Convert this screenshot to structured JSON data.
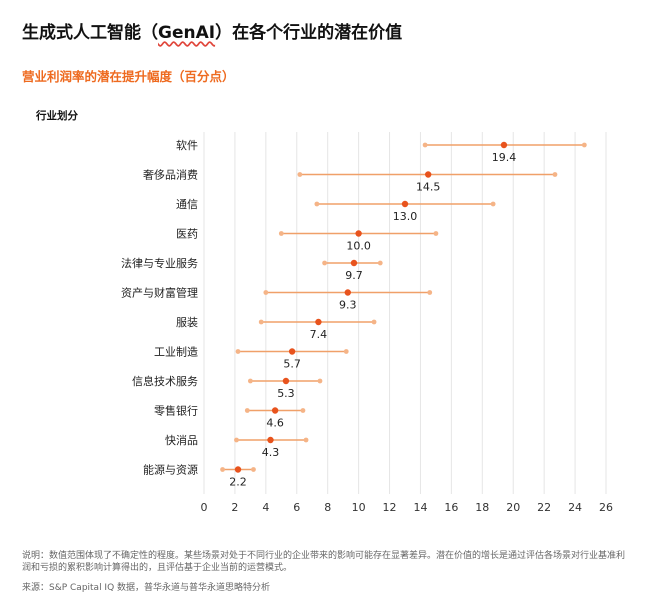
{
  "header": {
    "title_prefix": "生成式人工智能（",
    "title_brand": "GenAI",
    "title_suffix": "）在各个行业的潜在价值",
    "subtitle": "营业利润率的潜在提升幅度（百分点）",
    "axis_header": "行业划分"
  },
  "footer": {
    "note": "说明：数值范围体现了不确定性的程度。某些场景对处于不同行业的企业带来的影响可能存在显著差异。潜在价值的增长是通过评估各场景对行业基准利润和亏损的累积影响计算得出的，且评估基于企业当前的运营模式。",
    "source": "来源：S&P Capital IQ 数据，普华永道与普华永道思略特分析"
  },
  "colors": {
    "point": "#e8531d",
    "range_line": "#f0a069",
    "range_end": "#f5b487",
    "grid": "#e6e6e6",
    "title": "#111111",
    "accent": "#ee6a1f"
  },
  "chart_data": {
    "type": "dot-range",
    "title": "营业利润率的潜在提升幅度（百分点）",
    "ylabel": "行业划分",
    "xlabel": "",
    "xlim": [
      0,
      26
    ],
    "xticks": [
      0,
      2,
      4,
      6,
      8,
      10,
      12,
      14,
      16,
      18,
      20,
      22,
      24,
      26
    ],
    "grid": true,
    "categories": [
      "软件",
      "奢侈品消费",
      "通信",
      "医药",
      "法律与专业服务",
      "资产与财富管理",
      "服装",
      "工业制造",
      "信息技术服务",
      "零售银行",
      "快消品",
      "能源与资源"
    ],
    "values": [
      19.4,
      14.5,
      13.0,
      10.0,
      9.7,
      9.3,
      7.4,
      5.7,
      5.3,
      4.6,
      4.3,
      2.2
    ],
    "value_labels": [
      "19.4",
      "14.5",
      "13.0",
      "10.0",
      "9.7",
      "9.3",
      "7.4",
      "5.7",
      "5.3",
      "4.6",
      "4.3",
      "2.2"
    ],
    "low": [
      14.3,
      6.2,
      7.3,
      5.0,
      7.8,
      4.0,
      3.7,
      2.2,
      3.0,
      2.8,
      2.1,
      1.2
    ],
    "high": [
      24.6,
      22.7,
      18.7,
      15.0,
      11.4,
      14.6,
      11.0,
      9.2,
      7.5,
      6.4,
      6.6,
      3.2
    ]
  }
}
